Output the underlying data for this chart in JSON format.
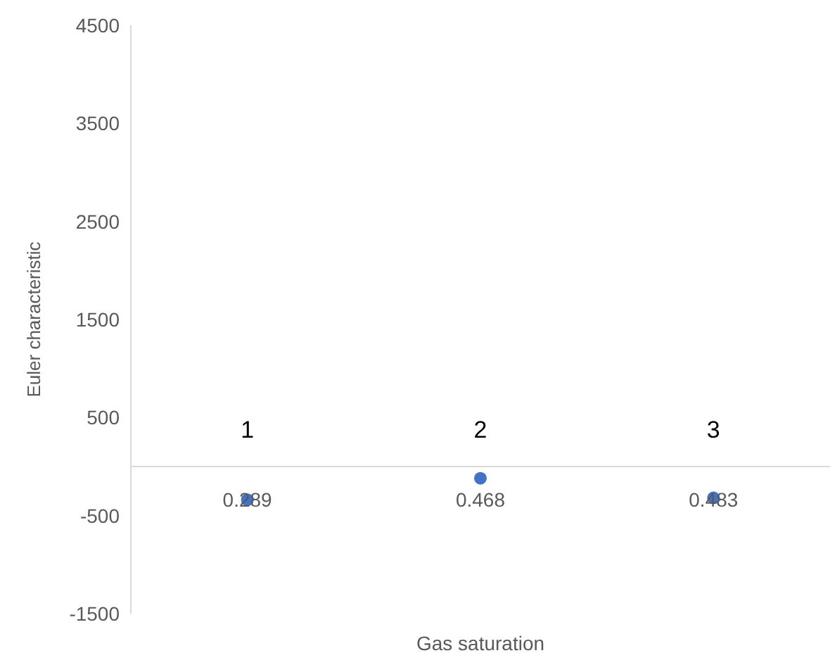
{
  "chart_data": {
    "type": "scatter",
    "xlabel": "Gas saturation",
    "ylabel": "Euler characteristic",
    "categories": [
      "0.289",
      "0.468",
      "0.483"
    ],
    "series": [
      {
        "color": "#4472c4",
        "values": [
          -340,
          -120,
          -320
        ]
      }
    ],
    "ylim": [
      -1500,
      4500
    ],
    "yticks": [
      -1500,
      -500,
      500,
      1500,
      2500,
      3500,
      4500
    ],
    "grid": false,
    "legend": false,
    "marker": "circle",
    "annotations": [
      "1",
      "2",
      "3"
    ]
  }
}
